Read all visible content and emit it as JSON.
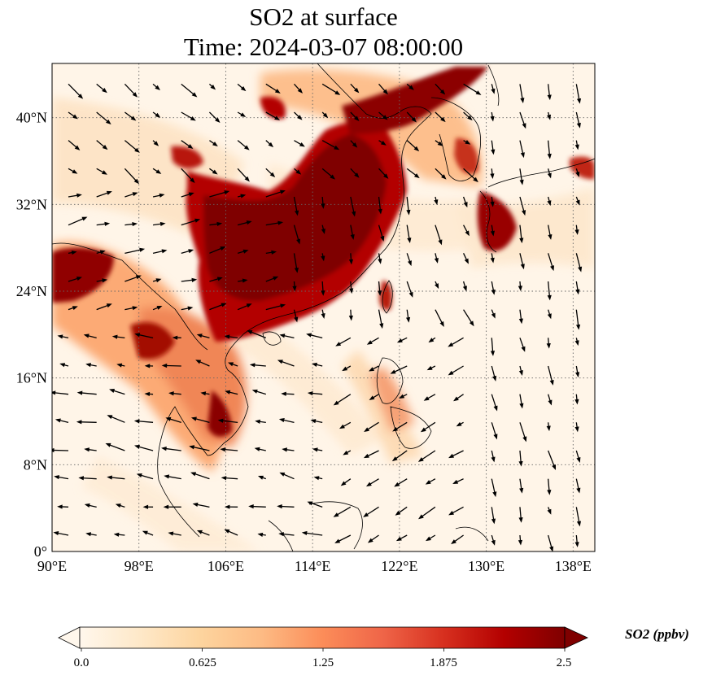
{
  "title_line1": "SO2 at surface",
  "title_line2": "Time: 2024-03-07 08:00:00",
  "map": {
    "lon_range": [
      90,
      140
    ],
    "lat_range": [
      0,
      45
    ],
    "lon_ticks": [
      90,
      98,
      106,
      114,
      122,
      130,
      138
    ],
    "lat_ticks": [
      0,
      8,
      16,
      24,
      32,
      40
    ],
    "lon_tick_labels": [
      "90°E",
      "98°E",
      "106°E",
      "114°E",
      "122°E",
      "130°E",
      "138°E"
    ],
    "lat_tick_labels": [
      "0°",
      "8°N",
      "16°N",
      "24°N",
      "32°N",
      "40°N"
    ],
    "gridlines": "dotted",
    "wind_vectors": "black arrows"
  },
  "colorbar": {
    "label": "SO2 (ppbv)",
    "min": 0.0,
    "max": 2.5,
    "extend": "both",
    "tick_labels": [
      "0.0",
      "0.625",
      "1.25",
      "1.875",
      "2.5"
    ],
    "colors": [
      "#fff7ec",
      "#fee8c8",
      "#fdd49e",
      "#fdbb84",
      "#fc8d59",
      "#ef6548",
      "#d7301f",
      "#b30000",
      "#7f0000"
    ]
  }
}
